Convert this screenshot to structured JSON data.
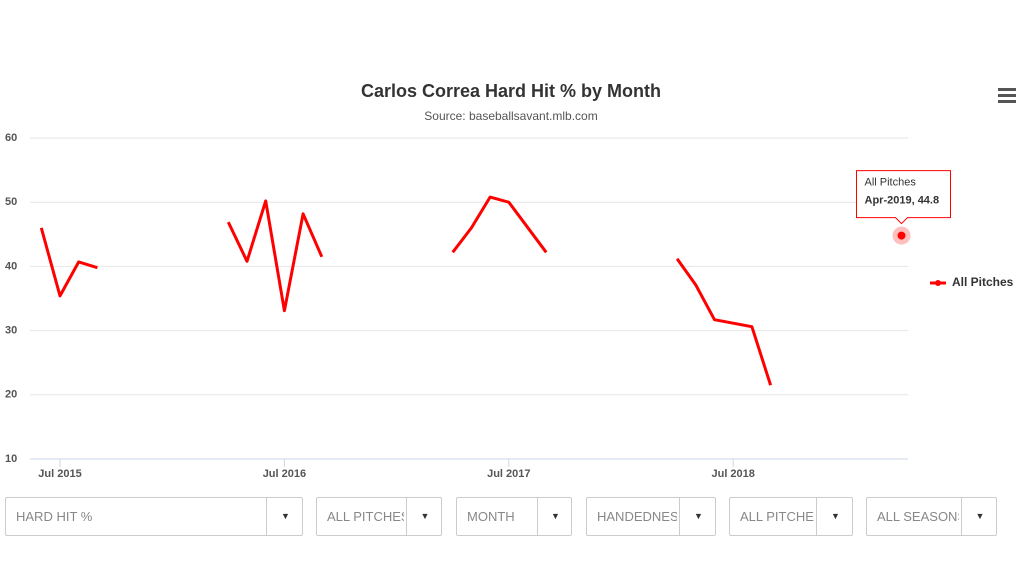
{
  "chart_data": {
    "type": "line",
    "title": "Carlos Correa Hard Hit % by Month",
    "subtitle": "Source: baseballsavant.mlb.com",
    "x": [
      "2015-06",
      "2015-07",
      "2015-08",
      "2015-09",
      "2015-10",
      "2016-04",
      "2016-05",
      "2016-06",
      "2016-07",
      "2016-08",
      "2016-09",
      "2016-10",
      "2017-04",
      "2017-05",
      "2017-06",
      "2017-07",
      "2017-09",
      "2017-10",
      "2018-04",
      "2018-05",
      "2018-06",
      "2018-08",
      "2018-09",
      "2018-10",
      "2019-04"
    ],
    "series": [
      {
        "name": "All Pitches",
        "color": "#ff0000",
        "values": [
          46.0,
          35.4,
          40.7,
          39.8,
          null,
          46.9,
          40.8,
          50.2,
          33.1,
          48.2,
          41.5,
          null,
          42.2,
          46.0,
          50.8,
          50.0,
          42.2,
          null,
          41.2,
          37.1,
          31.7,
          30.6,
          21.5,
          null,
          44.8
        ]
      }
    ],
    "xlim": [
      "2015-05",
      "2019-05"
    ],
    "xticks": [
      {
        "value": "2015-07",
        "label": "Jul 2015"
      },
      {
        "value": "2016-07",
        "label": "Jul 2016"
      },
      {
        "value": "2017-07",
        "label": "Jul 2017"
      },
      {
        "value": "2018-07",
        "label": "Jul 2018"
      }
    ],
    "ylim": [
      10,
      60
    ],
    "yticks": [
      10,
      20,
      30,
      40,
      50,
      60
    ],
    "grid": true,
    "legend": "right",
    "tooltip": {
      "label": "Apr-2019, 44.8"
    }
  },
  "controls": [
    "HARD HIT %",
    "ALL PITCHES",
    "MONTH",
    "HANDEDNESS",
    "ALL PITCHES",
    "ALL SEASONS"
  ]
}
